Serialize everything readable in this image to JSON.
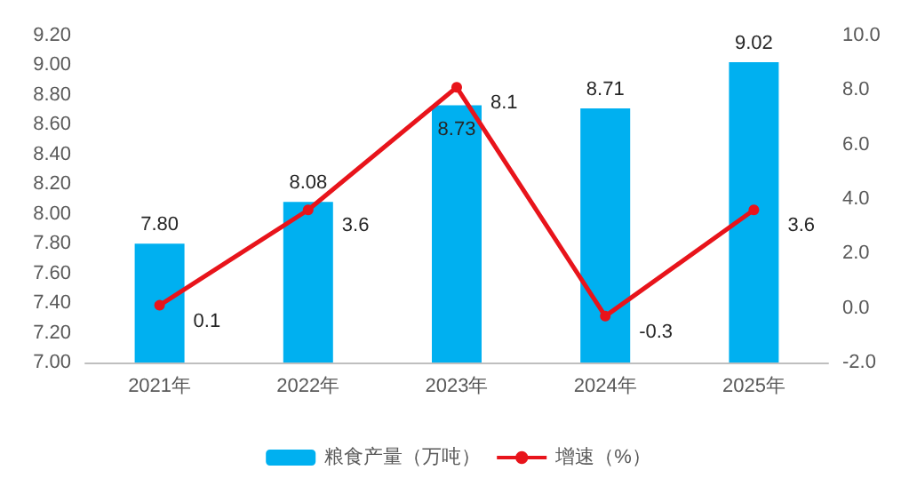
{
  "chart_data": {
    "type": "bar",
    "categories": [
      "2021年",
      "2022年",
      "2023年",
      "2024年",
      "2025年"
    ],
    "series": [
      {
        "name": "粮食产量（万吨）",
        "color": "#00b0f0",
        "values": [
          7.8,
          8.08,
          8.73,
          8.71,
          9.02
        ],
        "value_labels": [
          "7.80",
          "8.08",
          "8.73",
          "8.71",
          "9.02"
        ]
      },
      {
        "name": "增速（%）",
        "type": "line",
        "axis": "y2",
        "color": "#e8141b",
        "values": [
          0.1,
          3.6,
          8.1,
          -0.3,
          3.6
        ],
        "value_labels": [
          "0.1",
          "3.6",
          "8.1",
          "-0.3",
          "3.6"
        ],
        "marker": "circle"
      }
    ],
    "ylim": [
      7.0,
      9.2
    ],
    "yticks": [
      {
        "value": 7.0,
        "label": "7.00"
      },
      {
        "value": 7.2,
        "label": "7.20"
      },
      {
        "value": 7.4,
        "label": "7.40"
      },
      {
        "value": 7.6,
        "label": "7.60"
      },
      {
        "value": 7.8,
        "label": "7.80"
      },
      {
        "value": 8.0,
        "label": "8.00"
      },
      {
        "value": 8.2,
        "label": "8.20"
      },
      {
        "value": 8.4,
        "label": "8.40"
      },
      {
        "value": 8.6,
        "label": "8.60"
      },
      {
        "value": 8.8,
        "label": "8.80"
      },
      {
        "value": 9.0,
        "label": "9.00"
      },
      {
        "value": 9.2,
        "label": "9.20"
      }
    ],
    "y2lim": [
      -2.0,
      10.0
    ],
    "y2ticks": [
      {
        "value": -2,
        "label": "-2.0"
      },
      {
        "value": 0,
        "label": "0.0"
      },
      {
        "value": 2,
        "label": "2.0"
      },
      {
        "value": 4,
        "label": "4.0"
      },
      {
        "value": 6,
        "label": "6.0"
      },
      {
        "value": 8,
        "label": "8.0"
      },
      {
        "value": 10,
        "label": "10.0"
      }
    ],
    "grid": false,
    "legend": "bottom"
  }
}
